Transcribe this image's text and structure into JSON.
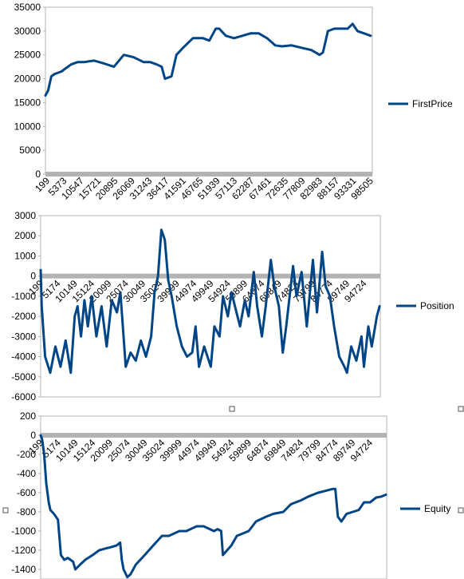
{
  "colors": {
    "series": "#004586",
    "axis": "#b3b3b3",
    "zero_band": "#b3b3b3",
    "frame": "#b3b3b3"
  },
  "chart_data": [
    {
      "type": "line",
      "ylim": [
        0,
        35000
      ],
      "yticks": [
        0,
        5000,
        10000,
        15000,
        20000,
        25000,
        30000,
        35000
      ],
      "xlim": [
        199,
        99500
      ],
      "xticks": [
        199,
        5373,
        10547,
        15721,
        20895,
        26069,
        31243,
        36417,
        41591,
        46765,
        51939,
        57113,
        62287,
        67461,
        72635,
        77809,
        82983,
        88157,
        93331,
        98505
      ],
      "legend": "right",
      "series": [
        {
          "name": "FirstPrice",
          "x": [
            199,
            1000,
            2000,
            3000,
            5000,
            8000,
            10000,
            12000,
            15000,
            18000,
            21000,
            24000,
            27000,
            30000,
            32000,
            34000,
            35500,
            36500,
            38500,
            40000,
            42000,
            45000,
            48000,
            50000,
            51939,
            53000,
            55000,
            57500,
            60000,
            62500,
            65000,
            67500,
            70000,
            72000,
            75000,
            78000,
            81000,
            83500,
            84500,
            86000,
            88000,
            90000,
            92000,
            93500,
            95000,
            97000,
            99000
          ],
          "values": [
            16500,
            17500,
            20500,
            21000,
            21500,
            23000,
            23500,
            23500,
            23800,
            23200,
            22500,
            25000,
            24500,
            23500,
            23500,
            23000,
            22500,
            20000,
            20500,
            25000,
            26500,
            28500,
            28500,
            28000,
            30500,
            30500,
            29000,
            28500,
            29000,
            29500,
            29500,
            28500,
            27000,
            26800,
            27000,
            26500,
            26000,
            25000,
            25500,
            30000,
            30500,
            30500,
            30500,
            31500,
            30000,
            29500,
            29000
          ]
        }
      ]
    },
    {
      "type": "line",
      "ylim": [
        -6000,
        3000
      ],
      "yticks": [
        -6000,
        -5000,
        -4000,
        -3000,
        -2000,
        -1000,
        0,
        1000,
        2000,
        3000
      ],
      "xlim": [
        199,
        99500
      ],
      "xticks": [
        199,
        5174,
        10149,
        15124,
        20099,
        25074,
        30049,
        35024,
        39999,
        44974,
        49949,
        54924,
        59899,
        64874,
        69849,
        74824,
        79799,
        84774,
        89749,
        94724
      ],
      "legend": "right",
      "series": [
        {
          "name": "Position",
          "x": [
            199,
            500,
            1500,
            3000,
            4500,
            6000,
            7500,
            9000,
            10149,
            11000,
            12000,
            13000,
            14000,
            15124,
            16500,
            18000,
            19500,
            21000,
            22500,
            23500,
            25074,
            26500,
            28000,
            29500,
            31000,
            32500,
            33500,
            34500,
            35500,
            36500,
            37500,
            38500,
            39999,
            41500,
            43000,
            44500,
            45500,
            46500,
            48000,
            49949,
            51000,
            52500,
            53500,
            54924,
            56000,
            57000,
            58500,
            59899,
            61000,
            62500,
            63500,
            64874,
            66000,
            67500,
            68500,
            69849,
            71000,
            72000,
            73000,
            74000,
            75000,
            76500,
            78000,
            79799,
            81000,
            82500,
            83500,
            84774,
            86000,
            87500,
            89000,
            89749,
            91000,
            92500,
            94000,
            94724,
            96000,
            97000,
            98500,
            99300
          ],
          "values": [
            300,
            -1500,
            -4000,
            -4800,
            -3500,
            -4500,
            -3200,
            -4800,
            -2000,
            -1500,
            -3000,
            -1200,
            -2500,
            -1000,
            -3000,
            -1500,
            -3500,
            -1200,
            -1800,
            -800,
            -4500,
            -3800,
            -4200,
            -3200,
            -4000,
            -3000,
            -800,
            0,
            2300,
            1800,
            -200,
            -1000,
            -2500,
            -3500,
            -4000,
            -3800,
            -2500,
            -4500,
            -3500,
            -4500,
            -2500,
            -3000,
            -1000,
            -2000,
            -800,
            -1500,
            -2500,
            -1200,
            -2000,
            200,
            -1500,
            -3000,
            -1500,
            800,
            -500,
            -1500,
            -3800,
            -2500,
            -1000,
            500,
            -1000,
            200,
            -2500,
            800,
            -1800,
            1200,
            -500,
            -1000,
            -2500,
            -4000,
            -4500,
            -4800,
            -3500,
            -4200,
            -3000,
            -4500,
            -2500,
            -3500,
            -2000,
            -1500
          ]
        }
      ]
    },
    {
      "type": "line",
      "ylim": [
        -1500,
        200
      ],
      "yticks": [
        -1400,
        -1200,
        -1000,
        -800,
        -600,
        -400,
        -200,
        0,
        200
      ],
      "xlim": [
        199,
        99500
      ],
      "xticks": [
        199,
        5174,
        10149,
        15124,
        20099,
        25074,
        30049,
        35024,
        39999,
        44974,
        49949,
        54924,
        59899,
        64874,
        69849,
        74824,
        79799,
        84774,
        89749,
        94724
      ],
      "legend": "right",
      "series": [
        {
          "name": "Equity",
          "x": [
            199,
            600,
            1200,
            1800,
            2500,
            3000,
            4000,
            5174,
            6000,
            7000,
            8000,
            9500,
            10149,
            11500,
            13000,
            15124,
            17000,
            19000,
            20099,
            22000,
            23000,
            23500,
            24000,
            25074,
            26000,
            27500,
            30049,
            32500,
            35024,
            37000,
            39999,
            42000,
            44974,
            47000,
            49949,
            51000,
            52000,
            52500,
            54924,
            56500,
            59899,
            62000,
            64874,
            67000,
            69849,
            72000,
            74824,
            77000,
            79799,
            82000,
            84000,
            84774,
            85500,
            86500,
            88000,
            89749,
            91500,
            93000,
            94724,
            96500,
            98000,
            99300
          ],
          "values": [
            0,
            -40,
            -200,
            -500,
            -700,
            -780,
            -820,
            -880,
            -1250,
            -1300,
            -1280,
            -1320,
            -1400,
            -1350,
            -1300,
            -1250,
            -1200,
            -1180,
            -1170,
            -1150,
            -1120,
            -1300,
            -1400,
            -1480,
            -1450,
            -1350,
            -1250,
            -1150,
            -1050,
            -1050,
            -1000,
            -1000,
            -950,
            -950,
            -1000,
            -980,
            -1000,
            -1250,
            -1150,
            -1050,
            -1000,
            -900,
            -850,
            -820,
            -800,
            -720,
            -680,
            -640,
            -600,
            -580,
            -560,
            -560,
            -850,
            -900,
            -820,
            -800,
            -780,
            -700,
            -700,
            -650,
            -640,
            -620
          ]
        }
      ]
    }
  ]
}
